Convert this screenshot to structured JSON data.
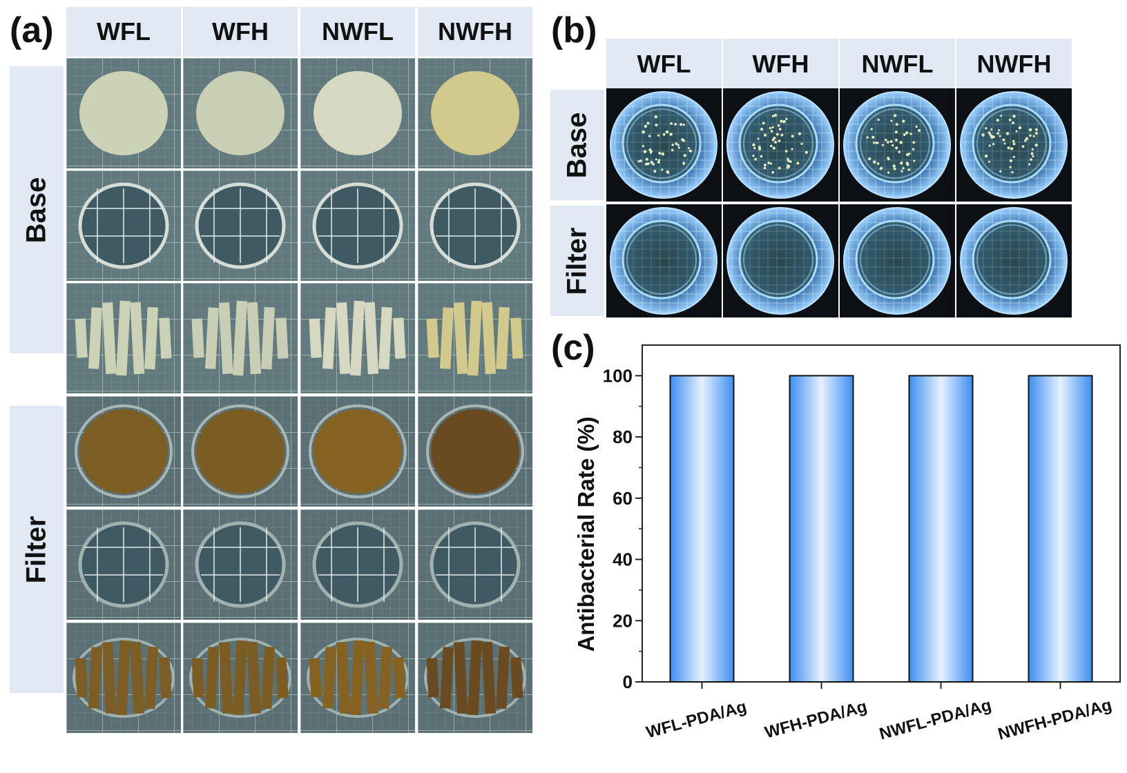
{
  "figure": {
    "panel_a": {
      "label": "(a)",
      "columns": [
        "WFL",
        "WFH",
        "NWFL",
        "NWFH"
      ],
      "groups": [
        "Base",
        "Filter"
      ],
      "sample_colors": {
        "base": [
          "#ccd2b6",
          "#c9cfb4",
          "#d6d8c2",
          "#d2c98d"
        ],
        "filter": [
          "#7c5d23",
          "#7b5c22",
          "#856222",
          "#6a4a20"
        ]
      }
    },
    "panel_b": {
      "label": "(b)",
      "columns": [
        "WFL",
        "WFH",
        "NWFL",
        "NWFH"
      ],
      "rows": [
        "Base",
        "Filter"
      ]
    },
    "panel_c": {
      "label": "(c)"
    }
  },
  "chart_data": {
    "type": "bar",
    "categories": [
      "WFL-PDA/Ag",
      "WFH-PDA/Ag",
      "NWFL-PDA/Ag",
      "NWFH-PDA/Ag"
    ],
    "values": [
      100,
      100,
      100,
      100
    ],
    "ylabel": "Antibacterial Rate (%)",
    "xlabel": "",
    "ylim": [
      0,
      110
    ],
    "yticks": [
      0,
      20,
      40,
      60,
      80,
      100
    ],
    "bar_color": "#3d8ff0",
    "grid": false
  }
}
